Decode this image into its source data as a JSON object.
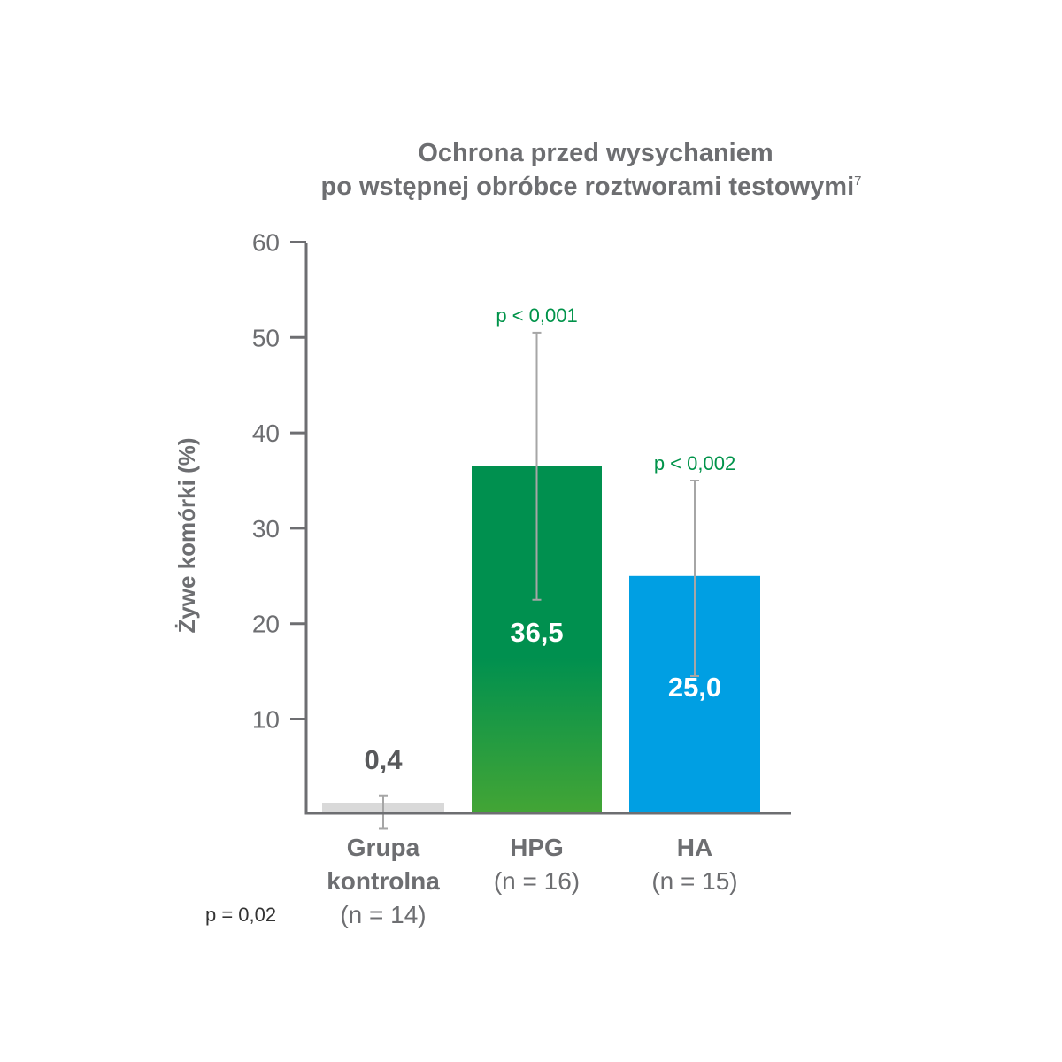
{
  "chart_data": {
    "type": "bar",
    "title_line1": "Ochrona przed wysychaniem",
    "title_line2": "po wstępnej obróbce roztworami testowymi",
    "title_superscript": "7",
    "ylabel": "Żywe komórki (%)",
    "xlabel": "",
    "ylim": [
      0,
      60
    ],
    "yticks": [
      "10",
      "20",
      "30",
      "40",
      "50",
      "60"
    ],
    "grid": false,
    "categories": [
      {
        "name_lines": [
          "Grupa",
          "kontrolna"
        ],
        "n_label": "(n = 14)"
      },
      {
        "name_lines": [
          "HPG"
        ],
        "n_label": "(n = 16)"
      },
      {
        "name_lines": [
          "HA"
        ],
        "n_label": "(n = 15)"
      }
    ],
    "values": [
      0.4,
      36.5,
      25.0
    ],
    "value_labels": [
      "0,4",
      "36,5",
      "25,0"
    ],
    "error_bars": [
      {
        "low": -1.5,
        "high": 2.0
      },
      {
        "low": 22.5,
        "high": 50.5
      },
      {
        "low": 14.5,
        "high": 35.0
      }
    ],
    "p_annotations": [
      "",
      "p < 0,001",
      "p < 0,002"
    ],
    "footnote": "p = 0,02",
    "colors": {
      "control_bar": "#d9d9d9",
      "hpg_top": "#00904f",
      "hpg_bottom": "#43a535",
      "ha_bar": "#009fe3",
      "axis": "#6d6e71",
      "error": "#a6a6a6",
      "p_text": "#00934a",
      "control_label": "#58595b",
      "bar_label_light": "#ffffff"
    }
  }
}
